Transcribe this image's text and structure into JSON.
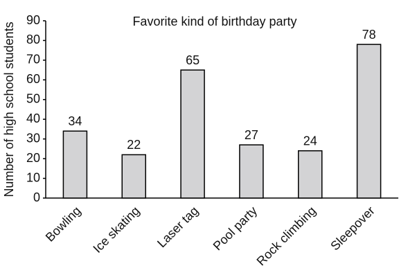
{
  "chart_data": {
    "type": "bar",
    "title": "Favorite kind of birthday party",
    "y_label": "Number of high school students",
    "categories": [
      "Bowling",
      "Ice skating",
      "Laser tag",
      "Pool party",
      "Rock climbing",
      "Sleepover"
    ],
    "values": [
      34,
      22,
      65,
      27,
      24,
      78
    ],
    "color": "#d3d3d5",
    "edge_color": "#000000",
    "ylim": [
      0,
      90
    ],
    "yticks": [
      0,
      10,
      20,
      30,
      40,
      50,
      60,
      70,
      80,
      90
    ],
    "grid": false
  }
}
